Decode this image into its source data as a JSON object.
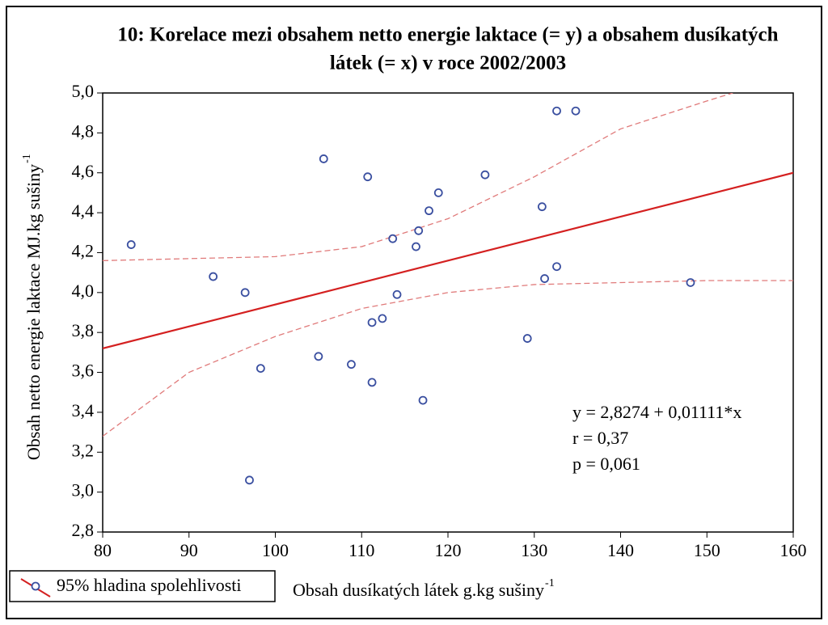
{
  "chart_data": {
    "type": "scatter",
    "title": [
      "10: Korelace mezi obsahem netto energie laktace (= y) a obsahem dusíkatých",
      "látek (= x) v roce 2002/2003"
    ],
    "x_label": "Obsah dusíkatých látek g.kg sušiny",
    "x_label_sup": "-1",
    "y_label": "Obsah netto energie laktace MJ.kg sušiny",
    "y_label_sup": "-1",
    "legend": "95% hladina spolehlivosti",
    "annotations": [
      "y = 2,8274 + 0,01111*x",
      "r = 0,37",
      "p = 0,061"
    ],
    "xlim": [
      80,
      160
    ],
    "xticks": [
      80,
      90,
      100,
      110,
      120,
      130,
      140,
      150,
      160
    ],
    "ylim": [
      2.8,
      5.0
    ],
    "yticks": [
      {
        "value": 2.8,
        "label": "2,8"
      },
      {
        "value": 3.0,
        "label": "3,0"
      },
      {
        "value": 3.2,
        "label": "3,2"
      },
      {
        "value": 3.4,
        "label": "3,4"
      },
      {
        "value": 3.6,
        "label": "3,6"
      },
      {
        "value": 3.8,
        "label": "3,8"
      },
      {
        "value": 4.0,
        "label": "4,0"
      },
      {
        "value": 4.2,
        "label": "4,2"
      },
      {
        "value": 4.4,
        "label": "4,4"
      },
      {
        "value": 4.6,
        "label": "4,6"
      },
      {
        "value": 4.8,
        "label": "4,8"
      },
      {
        "value": 5.0,
        "label": "5,0"
      }
    ],
    "series": [
      {
        "type": "scatter",
        "color": "#3a4fa0",
        "x": [
          83.3,
          92.8,
          96.5,
          97.0,
          98.3,
          105.0,
          105.6,
          108.8,
          110.7,
          111.2,
          111.2,
          112.4,
          113.6,
          114.1,
          116.3,
          116.6,
          117.1,
          117.8,
          118.9,
          124.3,
          129.2,
          130.9,
          131.2,
          132.6,
          132.6,
          134.8,
          148.1
        ],
        "values": [
          4.24,
          4.08,
          4.0,
          3.06,
          3.62,
          3.68,
          4.67,
          3.64,
          4.58,
          3.85,
          3.55,
          3.87,
          4.27,
          3.99,
          4.23,
          4.31,
          3.46,
          4.41,
          4.5,
          4.59,
          3.77,
          4.43,
          4.07,
          4.13,
          4.91,
          4.91,
          4.05
        ]
      },
      {
        "type": "line",
        "color": "#d42020",
        "dashed": false,
        "x": [
          80,
          160
        ],
        "values": [
          3.72,
          4.6
        ]
      },
      {
        "type": "line",
        "color": "#e07a7a",
        "dashed": true,
        "x": [
          80,
          90,
          100,
          110,
          120,
          130,
          140,
          150,
          153
        ],
        "values": [
          4.16,
          4.17,
          4.18,
          4.23,
          4.37,
          4.58,
          4.82,
          4.96,
          5.0
        ]
      },
      {
        "type": "line",
        "color": "#e07a7a",
        "dashed": true,
        "x": [
          80,
          90,
          100,
          110,
          120,
          130,
          140,
          150,
          160
        ],
        "values": [
          3.28,
          3.6,
          3.78,
          3.92,
          4.0,
          4.04,
          4.05,
          4.06,
          4.06
        ]
      }
    ]
  }
}
